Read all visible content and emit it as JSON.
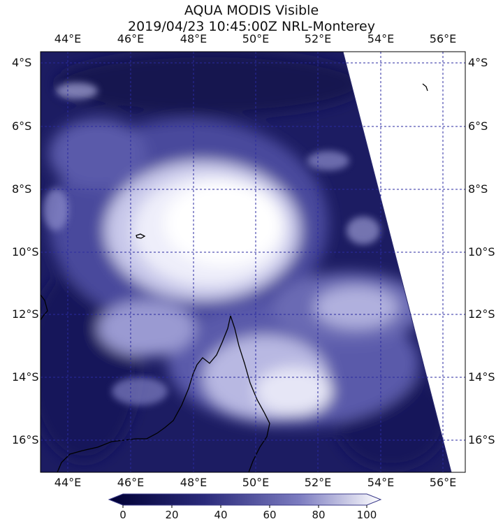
{
  "title_line1": "AQUA MODIS Visible",
  "title_line2": "2019/04/23 10:45:00Z NRL-Monterey",
  "lon_labels": [
    "44°E",
    "46°E",
    "48°E",
    "50°E",
    "52°E",
    "54°E",
    "56°E"
  ],
  "lat_labels": [
    "4°S",
    "6°S",
    "8°S",
    "10°S",
    "12°S",
    "14°S",
    "16°S"
  ],
  "colorbar": {
    "ticks": [
      "0",
      "20",
      "40",
      "60",
      "80",
      "100"
    ],
    "range": [
      0,
      100
    ],
    "colors": [
      "#000033",
      "#2a2a7a",
      "#7c7cc0",
      "#ffffff"
    ]
  },
  "map": {
    "lon_range": [
      43.2,
      56.4
    ],
    "lat_range": [
      -17.0,
      -3.6
    ],
    "gridline_color": "#2a2aa0",
    "swath_edge": "right"
  }
}
